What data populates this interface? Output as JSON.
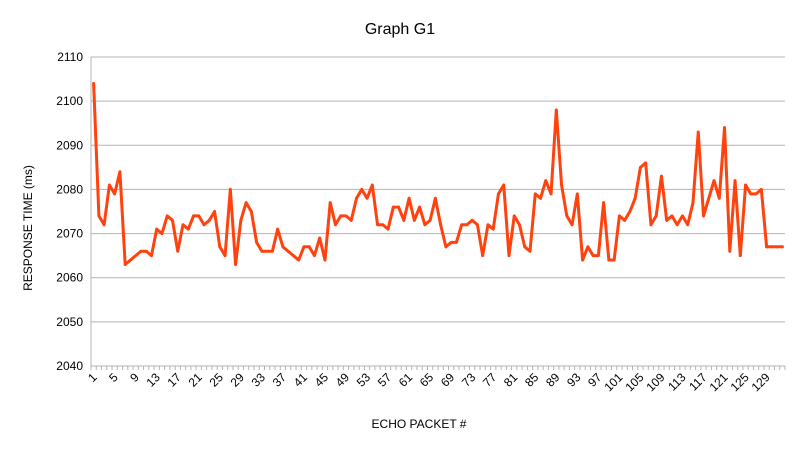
{
  "chart_data": {
    "type": "line",
    "title": "Graph G1",
    "xlabel": "ECHO PACKET #",
    "ylabel": "RESPONSE TIME (ms)",
    "ylim": [
      2040,
      2110
    ],
    "yticks": [
      2040,
      2050,
      2060,
      2070,
      2080,
      2090,
      2100,
      2110
    ],
    "xticks": [
      1,
      5,
      9,
      13,
      17,
      21,
      25,
      29,
      33,
      37,
      41,
      45,
      49,
      53,
      57,
      61,
      65,
      69,
      73,
      77,
      81,
      85,
      89,
      93,
      97,
      101,
      105,
      109,
      113,
      117,
      121,
      125,
      129
    ],
    "grid": "horizontal",
    "legend": "none",
    "line_color": "#ff420e",
    "x_start": 1,
    "x_end": 132,
    "values": [
      2104,
      2074,
      2072,
      2081,
      2079,
      2084,
      2063,
      2064,
      2065,
      2066,
      2066,
      2065,
      2071,
      2070,
      2074,
      2073,
      2066,
      2072,
      2071,
      2074,
      2074,
      2072,
      2073,
      2075,
      2067,
      2065,
      2080,
      2063,
      2073,
      2077,
      2075,
      2068,
      2066,
      2066,
      2066,
      2071,
      2067,
      2066,
      2065,
      2064,
      2067,
      2067,
      2065,
      2069,
      2064,
      2077,
      2072,
      2074,
      2074,
      2073,
      2078,
      2080,
      2078,
      2081,
      2072,
      2072,
      2071,
      2076,
      2076,
      2073,
      2078,
      2073,
      2076,
      2072,
      2073,
      2078,
      2072,
      2067,
      2068,
      2068,
      2072,
      2072,
      2073,
      2072,
      2065,
      2072,
      2071,
      2079,
      2081,
      2065,
      2074,
      2072,
      2067,
      2066,
      2079,
      2078,
      2082,
      2079,
      2098,
      2081,
      2074,
      2072,
      2079,
      2064,
      2067,
      2065,
      2065,
      2077,
      2064,
      2064,
      2074,
      2073,
      2075,
      2078,
      2085,
      2086,
      2072,
      2074,
      2083,
      2073,
      2074,
      2072,
      2074,
      2072,
      2077,
      2093,
      2074,
      2078,
      2082,
      2078,
      2094,
      2066,
      2082,
      2065,
      2081,
      2079,
      2079,
      2080,
      2067,
      2067,
      2067,
      2067
    ]
  }
}
